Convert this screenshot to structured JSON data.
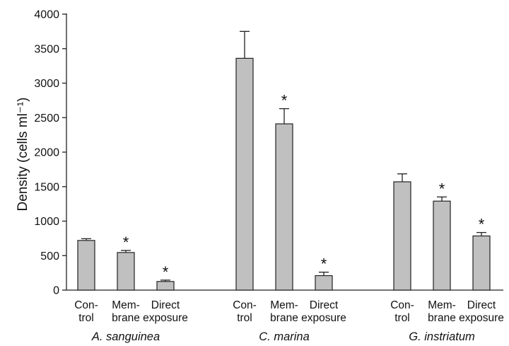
{
  "chart_data": {
    "type": "bar",
    "ylabel": "Density (cells ml⁻¹)",
    "xlabel": "",
    "ylim": [
      0,
      4000
    ],
    "yticks": [
      0,
      500,
      1000,
      1500,
      2000,
      2500,
      3000,
      3500,
      4000
    ],
    "grid": false,
    "legend": "none",
    "bar_color": "#c0c0c0",
    "groups": [
      {
        "name": "A. sanguinea",
        "bars": [
          {
            "label": [
              "Con-",
              "trol"
            ],
            "value": 720,
            "error": 25,
            "significant": false
          },
          {
            "label": [
              "Mem-",
              "brane"
            ],
            "value": 545,
            "error": 30,
            "significant": true
          },
          {
            "label": [
              "Direct",
              "exposure"
            ],
            "value": 125,
            "error": 20,
            "significant": true
          }
        ]
      },
      {
        "name": "C. marina",
        "bars": [
          {
            "label": [
              "Con-",
              "trol"
            ],
            "value": 3360,
            "error": 390,
            "significant": false
          },
          {
            "label": [
              "Mem-",
              "brane"
            ],
            "value": 2410,
            "error": 220,
            "significant": true
          },
          {
            "label": [
              "Direct",
              "exposure"
            ],
            "value": 210,
            "error": 50,
            "significant": true
          }
        ]
      },
      {
        "name": "G. instriatum",
        "bars": [
          {
            "label": [
              "Con-",
              "trol"
            ],
            "value": 1570,
            "error": 115,
            "significant": false
          },
          {
            "label": [
              "Mem-",
              "brane"
            ],
            "value": 1290,
            "error": 60,
            "significant": true
          },
          {
            "label": [
              "Direct",
              "exposure"
            ],
            "value": 785,
            "error": 50,
            "significant": true
          }
        ]
      }
    ],
    "significance_marker": "*"
  }
}
